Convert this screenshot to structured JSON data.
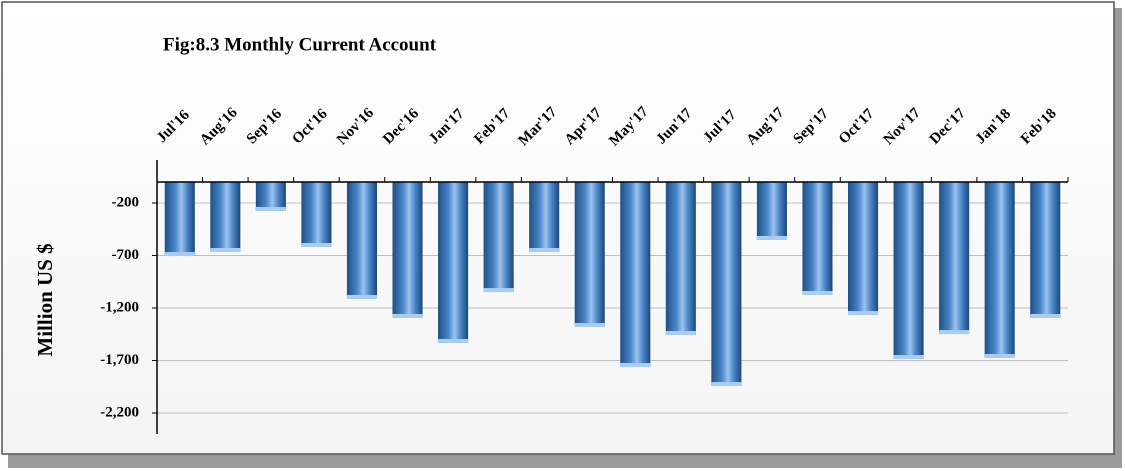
{
  "chart_data": {
    "type": "bar",
    "title": "Fig:8.3 Monthly Current Account",
    "y_label": "Million US $",
    "categories": [
      "Jul'16",
      "Aug'16",
      "Sep'16",
      "Oct'16",
      "Nov'16",
      "Dec'16",
      "Jan'17",
      "Feb'17",
      "Mar'17",
      "Apr'17",
      "May'17",
      "Jun'17",
      "Jul'17",
      "Aug'17",
      "Sep'17",
      "Oct'17",
      "Nov'17",
      "Dec'17",
      "Jan'18",
      "Feb'18"
    ],
    "values": [
      -705,
      -667,
      -276,
      -619,
      -1114,
      -1295,
      -1533,
      -1048,
      -667,
      -1381,
      -1762,
      -1457,
      -1943,
      -552,
      -1076,
      -1267,
      -1686,
      -1448,
      -1676,
      -1295
    ],
    "color": "#4a86c8",
    "ylim": [
      -2400,
      0
    ],
    "yticks": [
      -200,
      -700,
      {
        "value": -1200,
        "label": "-1,200"
      },
      {
        "value": -1700,
        "label": "-1,700"
      },
      {
        "value": -2200,
        "label": "-2,200"
      }
    ],
    "grid": true
  }
}
